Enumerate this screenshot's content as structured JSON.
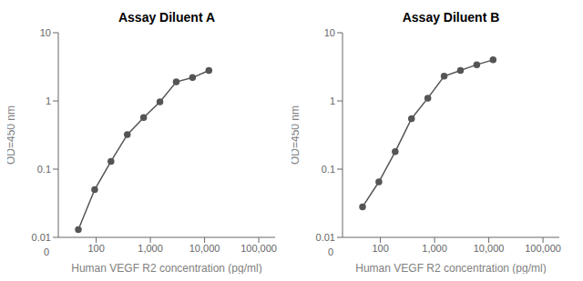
{
  "chart_data": [
    {
      "type": "line",
      "title": "Assay Diluent A",
      "x": [
        46.875,
        93.75,
        187.5,
        375,
        750,
        1500,
        3000,
        6000,
        12000
      ],
      "series": [
        {
          "values": [
            0.013,
            0.05,
            0.13,
            0.32,
            0.57,
            0.97,
            1.9,
            2.2,
            2.8
          ],
          "color": "#555555",
          "marker": "circle"
        }
      ],
      "xlabel": "Human VEGF R2 concentration (pg/ml)",
      "ylabel": "OD=450 nm",
      "xlim": [
        20,
        200000
      ],
      "ylim": [
        0.01,
        10
      ],
      "xticks": [
        100,
        {
          "value": 1000,
          "label": "1,000"
        },
        {
          "value": 10000,
          "label": "10,000"
        },
        {
          "value": 100000,
          "label": "100,000"
        }
      ],
      "yticks": [
        0.01,
        0.1,
        1,
        10
      ],
      "log": true,
      "grid": false,
      "annotations": [
        {
          "text": "0"
        }
      ]
    },
    {
      "type": "line",
      "title": "Assay Diluent B",
      "x": [
        46.875,
        93.75,
        187.5,
        375,
        750,
        1500,
        3000,
        6000,
        12000
      ],
      "series": [
        {
          "values": [
            0.028,
            0.065,
            0.18,
            0.55,
            1.1,
            2.3,
            2.8,
            3.4,
            4.0
          ],
          "color": "#555555",
          "marker": "circle"
        }
      ],
      "xlabel": "Human VEGF R2 concentration (pg/ml)",
      "ylabel": "OD=450 nm",
      "xlim": [
        20,
        200000
      ],
      "ylim": [
        0.01,
        10
      ],
      "xticks": [
        100,
        {
          "value": 1000,
          "label": "1,000"
        },
        {
          "value": 10000,
          "label": "10,000"
        },
        {
          "value": 100000,
          "label": "100,000"
        }
      ],
      "yticks": [
        0.01,
        0.1,
        1,
        10
      ],
      "log": true,
      "grid": false,
      "annotations": [
        {
          "text": "0"
        }
      ]
    }
  ]
}
